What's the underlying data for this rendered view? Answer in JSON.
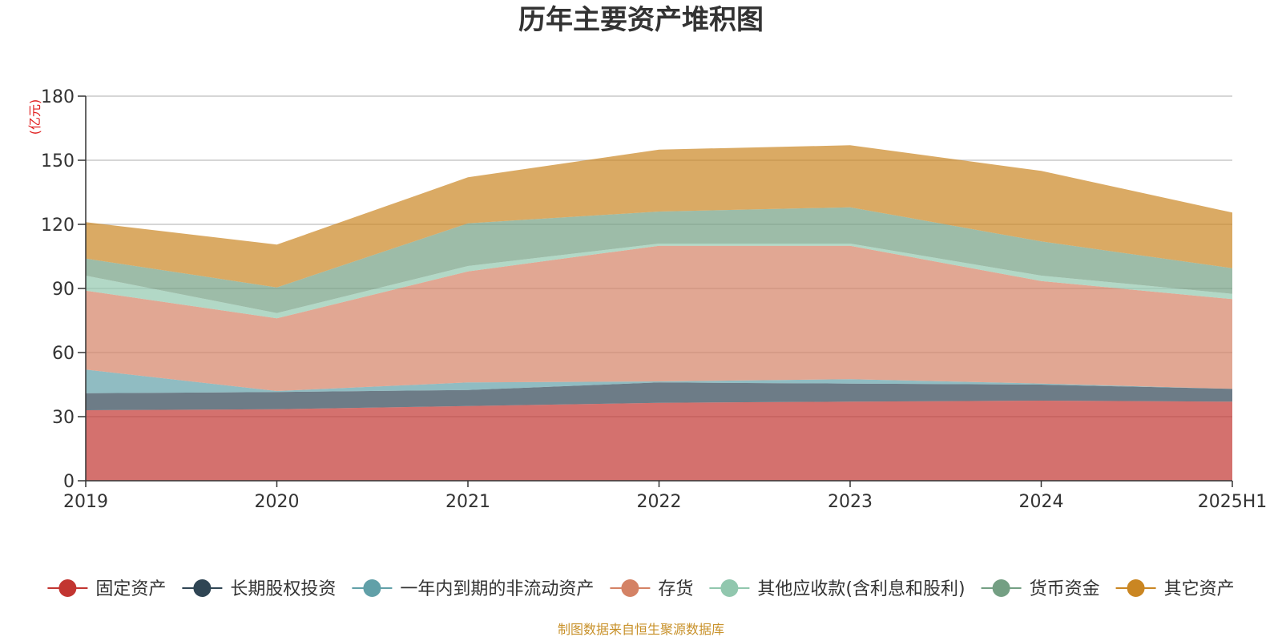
{
  "chart_data": {
    "type": "area",
    "stacked": true,
    "title": "历年主要资产堆积图",
    "unit_label": "(亿元)",
    "x": [
      "2019",
      "2020",
      "2021",
      "2022",
      "2023",
      "2024",
      "2025H1"
    ],
    "ylim": [
      0,
      180
    ],
    "yticks": [
      0,
      30,
      60,
      90,
      120,
      150,
      180
    ],
    "grid": true,
    "legend_position": "bottom",
    "series": [
      {
        "name": "固定资产",
        "color": "#c23531",
        "values": [
          33,
          33.5,
          35,
          36.5,
          37,
          37.5,
          37
        ]
      },
      {
        "name": "长期股权投资",
        "color": "#2f4554",
        "values": [
          8,
          8,
          7.5,
          9.5,
          8.5,
          7.5,
          6
        ]
      },
      {
        "name": "一年内到期的非流动资产",
        "color": "#61a0a8",
        "values": [
          11,
          0.5,
          3.5,
          0.5,
          2,
          0.5,
          0
        ]
      },
      {
        "name": "存货",
        "color": "#d48265",
        "values": [
          37,
          34,
          52,
          63.5,
          62.5,
          48,
          42
        ]
      },
      {
        "name": "其他应收款(含利息和股利)",
        "color": "#91c7ae",
        "values": [
          7,
          2.5,
          2.5,
          1,
          1,
          2.5,
          2.5
        ]
      },
      {
        "name": "货币资金",
        "color": "#749f83",
        "values": [
          8,
          12,
          20,
          15,
          17,
          16,
          12
        ]
      },
      {
        "name": "其它资产",
        "color": "#ca8622",
        "values": [
          17,
          20,
          21.5,
          29,
          29,
          33,
          26
        ]
      }
    ],
    "source_note": "制图数据来自恒生聚源数据库"
  }
}
